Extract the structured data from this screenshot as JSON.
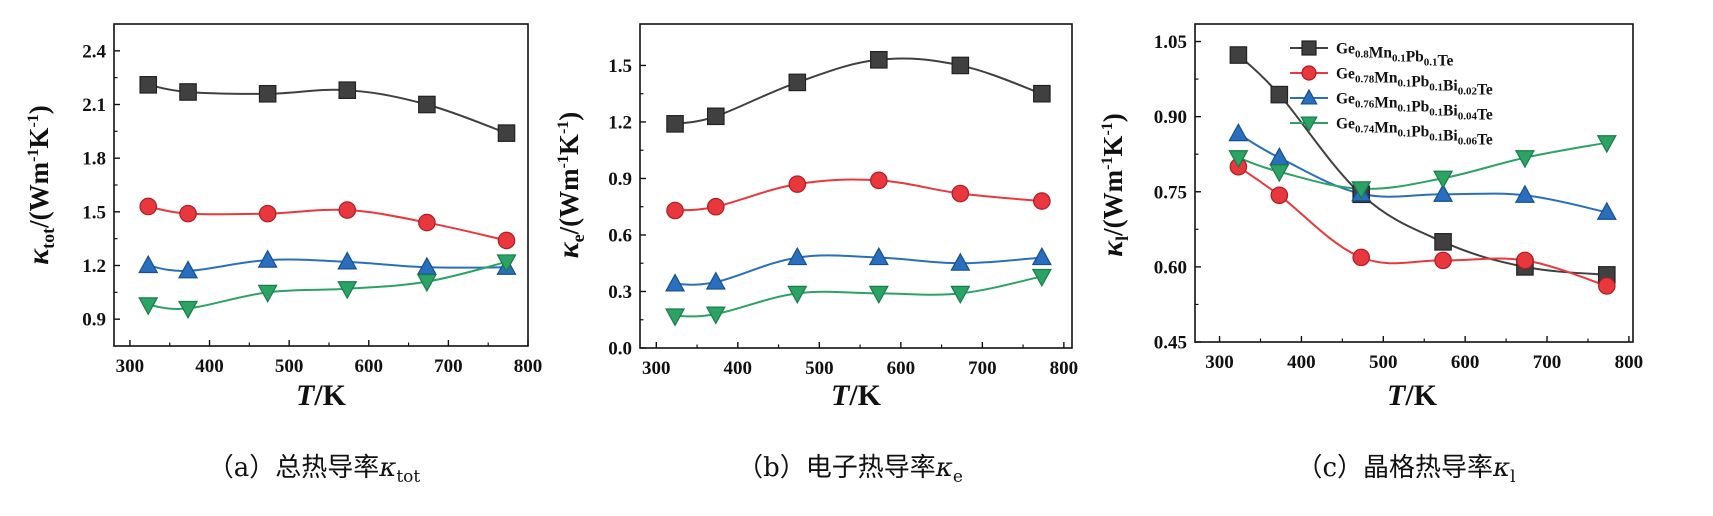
{
  "series_names": [
    {
      "base": "Ge",
      "parts": [
        [
          "Ge",
          "0.8"
        ],
        [
          "Mn",
          "0.1"
        ],
        [
          "Pb",
          "0.1"
        ]
      ],
      "tail": "Te"
    },
    {
      "base": "Ge",
      "parts": [
        [
          "Ge",
          "0.78"
        ],
        [
          "Mn",
          "0.1"
        ],
        [
          "Pb",
          "0.1"
        ],
        [
          "Bi",
          "0.02"
        ]
      ],
      "tail": "Te"
    },
    {
      "base": "Ge",
      "parts": [
        [
          "Ge",
          "0.76"
        ],
        [
          "Mn",
          "0.1"
        ],
        [
          "Pb",
          "0.1"
        ],
        [
          "Bi",
          "0.04"
        ]
      ],
      "tail": "Te"
    },
    {
      "base": "Ge",
      "parts": [
        [
          "Ge",
          "0.74"
        ],
        [
          "Mn",
          "0.1"
        ],
        [
          "Pb",
          "0.1"
        ],
        [
          "Bi",
          "0.06"
        ]
      ],
      "tail": "Te"
    }
  ],
  "series_style": [
    {
      "color": "#404040",
      "edge": "#222222",
      "marker": "square"
    },
    {
      "color": "#e8383d",
      "edge": "#b01c22",
      "marker": "circle"
    },
    {
      "color": "#2a6fbd",
      "edge": "#184f90",
      "marker": "triangle-up"
    },
    {
      "color": "#2ba365",
      "edge": "#1b7c48",
      "marker": "triangle-down"
    }
  ],
  "chart_data": [
    {
      "type": "line",
      "panel": "a",
      "xlabel_italic": "T",
      "xlabel_rest": "/K",
      "ylabel_symbol": "κ",
      "ylabel_sub": "tot",
      "ylabel_unit": "/(Wm",
      "ylabel_sup1": "-1",
      "ylabel_k": "K",
      "ylabel_sup2": "-1",
      "ylabel_close": ")",
      "xlim": [
        280,
        800
      ],
      "ylim": [
        0.75,
        2.55
      ],
      "xticks": [
        "300",
        "400",
        "500",
        "600",
        "700",
        "800"
      ],
      "yticks": [
        "0.9",
        "1.2",
        "1.5",
        "1.8",
        "2.1",
        "2.4"
      ],
      "x": [
        323,
        373,
        473,
        573,
        673,
        773
      ],
      "series": [
        {
          "name": "Ge0.8Mn0.1Pb0.1Te",
          "values": [
            2.21,
            2.17,
            2.16,
            2.18,
            2.1,
            1.94
          ]
        },
        {
          "name": "Ge0.78Mn0.1Pb0.1Bi0.02Te",
          "values": [
            1.53,
            1.49,
            1.49,
            1.51,
            1.44,
            1.34
          ]
        },
        {
          "name": "Ge0.76Mn0.1Pb0.1Bi0.04Te",
          "values": [
            1.2,
            1.17,
            1.23,
            1.22,
            1.19,
            1.19
          ]
        },
        {
          "name": "Ge0.74Mn0.1Pb0.1Bi0.06Te",
          "values": [
            0.98,
            0.96,
            1.05,
            1.07,
            1.11,
            1.22
          ]
        }
      ],
      "caption_prefix": "（a）总热导率",
      "caption_symbol": "κ",
      "caption_sub": "tot"
    },
    {
      "type": "line",
      "panel": "b",
      "xlabel_italic": "T",
      "xlabel_rest": "/K",
      "ylabel_symbol": "κ",
      "ylabel_sub": "e",
      "ylabel_unit": "/(Wm",
      "ylabel_sup1": "-1",
      "ylabel_k": "K",
      "ylabel_sup2": "-1",
      "ylabel_close": ")",
      "xlim": [
        280,
        810
      ],
      "ylim": [
        0.0,
        1.72
      ],
      "xticks": [
        "300",
        "400",
        "500",
        "600",
        "700",
        "800"
      ],
      "yticks": [
        "0.0",
        "0.3",
        "0.6",
        "0.9",
        "1.2",
        "1.5"
      ],
      "x": [
        323,
        373,
        473,
        573,
        673,
        773
      ],
      "series": [
        {
          "name": "Ge0.8Mn0.1Pb0.1Te",
          "values": [
            1.19,
            1.23,
            1.41,
            1.53,
            1.5,
            1.35
          ]
        },
        {
          "name": "Ge0.78Mn0.1Pb0.1Bi0.02Te",
          "values": [
            0.73,
            0.75,
            0.87,
            0.89,
            0.82,
            0.78
          ]
        },
        {
          "name": "Ge0.76Mn0.1Pb0.1Bi0.04Te",
          "values": [
            0.34,
            0.35,
            0.48,
            0.48,
            0.45,
            0.48
          ]
        },
        {
          "name": "Ge0.74Mn0.1Pb0.1Bi0.06Te",
          "values": [
            0.17,
            0.18,
            0.29,
            0.29,
            0.29,
            0.38
          ]
        }
      ],
      "caption_prefix": "（b）电子热导率",
      "caption_symbol": "κ",
      "caption_sub": "e"
    },
    {
      "type": "line",
      "panel": "c",
      "xlabel_italic": "T",
      "xlabel_rest": "/K",
      "ylabel_symbol": "κ",
      "ylabel_sub": "l",
      "ylabel_unit": "/(Wm",
      "ylabel_sup1": "-1",
      "ylabel_k": "K",
      "ylabel_sup2": "-1",
      "ylabel_close": ")",
      "xlim": [
        270,
        805
      ],
      "ylim": [
        0.45,
        1.085
      ],
      "xticks": [
        "300",
        "400",
        "500",
        "600",
        "700",
        "800"
      ],
      "yticks": [
        "0.45",
        "0.60",
        "0.75",
        "0.90",
        "1.05"
      ],
      "x": [
        323,
        373,
        473,
        573,
        673,
        773
      ],
      "series": [
        {
          "name": "Ge0.8Mn0.1Pb0.1Te",
          "values": [
            1.023,
            0.944,
            0.745,
            0.65,
            0.6,
            0.584
          ]
        },
        {
          "name": "Ge0.78Mn0.1Pb0.1Bi0.02Te",
          "values": [
            0.8,
            0.743,
            0.619,
            0.613,
            0.613,
            0.562
          ]
        },
        {
          "name": "Ge0.76Mn0.1Pb0.1Bi0.04Te",
          "values": [
            0.866,
            0.818,
            0.746,
            0.745,
            0.743,
            0.709
          ]
        },
        {
          "name": "Ge0.74Mn0.1Pb0.1Bi0.06Te",
          "values": [
            0.818,
            0.79,
            0.756,
            0.777,
            0.818,
            0.848
          ]
        }
      ],
      "legend_position": "top-right",
      "caption_prefix": "（c）晶格热导率",
      "caption_symbol": "κ",
      "caption_sub": "l"
    }
  ]
}
